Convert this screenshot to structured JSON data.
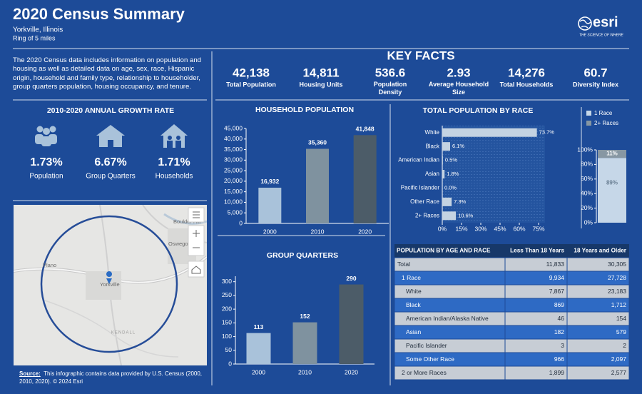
{
  "header": {
    "title": "2020 Census Summary",
    "location": "Yorkville, Illinois",
    "area": "Ring of 5 miles"
  },
  "logo": {
    "name": "esri",
    "tagline": "THE SCIENCE OF WHERE"
  },
  "intro": "The 2020 Census data includes information on population and housing as well as detailed data on age, sex, race, Hispanic origin, household and family type, relationship to householder, group quarters population, housing occupancy, and tenure.",
  "key_facts": {
    "title": "KEY FACTS",
    "items": [
      {
        "value": "42,138",
        "label": "Total Population"
      },
      {
        "value": "14,811",
        "label": "Housing Units"
      },
      {
        "value": "536.6",
        "label": "Population Density"
      },
      {
        "value": "2.93",
        "label": "Average Household Size"
      },
      {
        "value": "14,276",
        "label": "Total Households"
      },
      {
        "value": "60.7",
        "label": "Diversity Index"
      }
    ]
  },
  "growth": {
    "title": "2010-2020 ANNUAL GROWTH RATE",
    "items": [
      {
        "value": "1.73%",
        "label": "Population"
      },
      {
        "value": "6.67%",
        "label": "Group Quarters"
      },
      {
        "value": "1.71%",
        "label": "Households"
      }
    ]
  },
  "map": {
    "places": [
      "Boulder Hill",
      "Oswego",
      "Plano",
      "Yorkville",
      "KENDALL"
    ]
  },
  "source": {
    "label": "Source:",
    "text": "This infographic contains data provided by U.S. Census (2000, 2010, 2020). © 2024 Esri"
  },
  "chart_data": [
    {
      "type": "bar",
      "title": "HOUSEHOLD POPULATION",
      "categories": [
        "2000",
        "2010",
        "2020"
      ],
      "values": [
        16932,
        35360,
        41848
      ],
      "value_labels": [
        "16,932",
        "35,360",
        "41,848"
      ],
      "colors": [
        "#a9c2da",
        "#7f929f",
        "#4c5c68"
      ],
      "ylim": [
        0,
        45000
      ],
      "yticks": [
        0,
        {
          "value": 5000,
          "label": "5,000"
        },
        {
          "value": 10000,
          "label": "10,000"
        },
        {
          "value": 15000,
          "label": "15,000"
        },
        {
          "value": 20000,
          "label": "20,000"
        },
        {
          "value": 25000,
          "label": "25,000"
        },
        {
          "value": 30000,
          "label": "30,000"
        },
        {
          "value": 35000,
          "label": "35,000"
        },
        {
          "value": 40000,
          "label": "40,000"
        },
        {
          "value": 45000,
          "label": "45,000"
        }
      ]
    },
    {
      "type": "bar",
      "title": "GROUP QUARTERS",
      "categories": [
        "2000",
        "2010",
        "2020"
      ],
      "values": [
        113,
        152,
        290
      ],
      "colors": [
        "#a9c2da",
        "#7f929f",
        "#4c5c68"
      ],
      "ylim": [
        0,
        320
      ],
      "yticks": [
        0,
        50,
        100,
        150,
        200,
        250,
        300
      ]
    },
    {
      "type": "barh",
      "title": "TOTAL POPULATION BY RACE",
      "categories": [
        "White",
        "Black",
        "American Indian",
        "Asian",
        "Pacific Islander",
        "Other Race",
        "2+ Races"
      ],
      "values": [
        73.7,
        6.1,
        0.5,
        1.8,
        0.0,
        7.3,
        10.6
      ],
      "value_labels": [
        "73.7%",
        "6.1%",
        "0.5%",
        "1.8%",
        "0.0%",
        "7.3%",
        "10.6%"
      ],
      "color": "#c4d3e2",
      "xlim": [
        0,
        80
      ],
      "xticks": [
        {
          "value": 0,
          "label": "0%"
        },
        {
          "value": 15,
          "label": "15%"
        },
        {
          "value": 30,
          "label": "30%"
        },
        {
          "value": 45,
          "label": "45%"
        },
        {
          "value": 60,
          "label": "60%"
        },
        {
          "value": 75,
          "label": "75%"
        }
      ]
    },
    {
      "type": "stacked",
      "series": [
        {
          "name": "1 Race",
          "color": "#c6d7e8",
          "values": [
            89
          ],
          "value_labels": [
            "89%"
          ]
        },
        {
          "name": "2+ Races",
          "color": "#8797a3",
          "values": [
            11
          ],
          "value_labels": [
            "11%"
          ]
        }
      ],
      "ylim": [
        0,
        100
      ],
      "yticks": [
        {
          "value": 0,
          "label": "0%"
        },
        {
          "value": 20,
          "label": "20%"
        },
        {
          "value": 40,
          "label": "40%"
        },
        {
          "value": 60,
          "label": "60%"
        },
        {
          "value": 80,
          "label": "80%"
        },
        {
          "value": 100,
          "label": "100%"
        }
      ]
    }
  ],
  "table": {
    "header": [
      "POPULATION BY AGE AND RACE",
      "Less Than 18 Years",
      "18 Years and Older"
    ],
    "rows": [
      [
        "Total",
        "11,833",
        "30,305"
      ],
      [
        "1 Race",
        "9,934",
        "27,728"
      ],
      [
        "White",
        "7,867",
        "23,183"
      ],
      [
        "Black",
        "869",
        "1,712"
      ],
      [
        "American Indian/Alaska Native",
        "46",
        "154"
      ],
      [
        "Asian",
        "182",
        "579"
      ],
      [
        "Pacific Islander",
        "3",
        "2"
      ],
      [
        "Some Other Race",
        "966",
        "2,097"
      ],
      [
        "2 or More Races",
        "1,899",
        "2,577"
      ]
    ]
  }
}
